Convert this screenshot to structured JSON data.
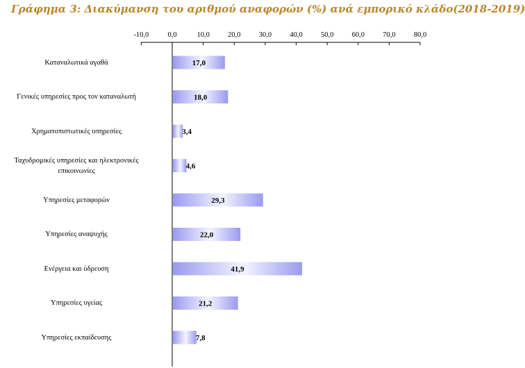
{
  "chart_data": {
    "type": "bar",
    "orientation": "horizontal",
    "title": "Γράφημα 3: Διακύμανση του αριθμού αναφορών (%) ανά εμπορικό κλάδο(2018-2019)",
    "categories": [
      "Καταναλωτικά αγαθά",
      "Γενικές υπηρεσίες προς τον καταναλωτή",
      "Χρηματοπιστωτικές υπηρεσίες",
      "Ταχυδρομικές υπηρεσίες και ηλεκτρονικές επικοινωνίες",
      "Υπηρεσίες μεταφορών",
      "Υπηρεσίες αναψυχής",
      "Ενέργεια και ύδρευση",
      "Υπηρεσίες υγείας",
      "Υπηρεσίες εκπαίδευσης"
    ],
    "values": [
      17.0,
      18.0,
      3.4,
      4.6,
      29.3,
      22.0,
      41.9,
      21.2,
      7.8
    ],
    "data_labels": [
      "17,0",
      "18,0",
      "3,4",
      "4,6",
      "29,3",
      "22,0",
      "41,9",
      "21,2",
      "7,8"
    ],
    "xlim": [
      -10,
      80
    ],
    "x_ticks": [
      -10,
      0,
      10,
      20,
      30,
      40,
      50,
      60,
      70,
      80
    ],
    "x_tick_labels": [
      "-10,0",
      "0,0",
      "10,0",
      "20,0",
      "30,0",
      "40,0",
      "50,0",
      "60,0",
      "70,0",
      "80,0"
    ],
    "axis_position": "top",
    "grid": false,
    "bar_color": "#9a9af0",
    "bar_highlight": "#ffffff",
    "title_color": "#b8862b"
  }
}
